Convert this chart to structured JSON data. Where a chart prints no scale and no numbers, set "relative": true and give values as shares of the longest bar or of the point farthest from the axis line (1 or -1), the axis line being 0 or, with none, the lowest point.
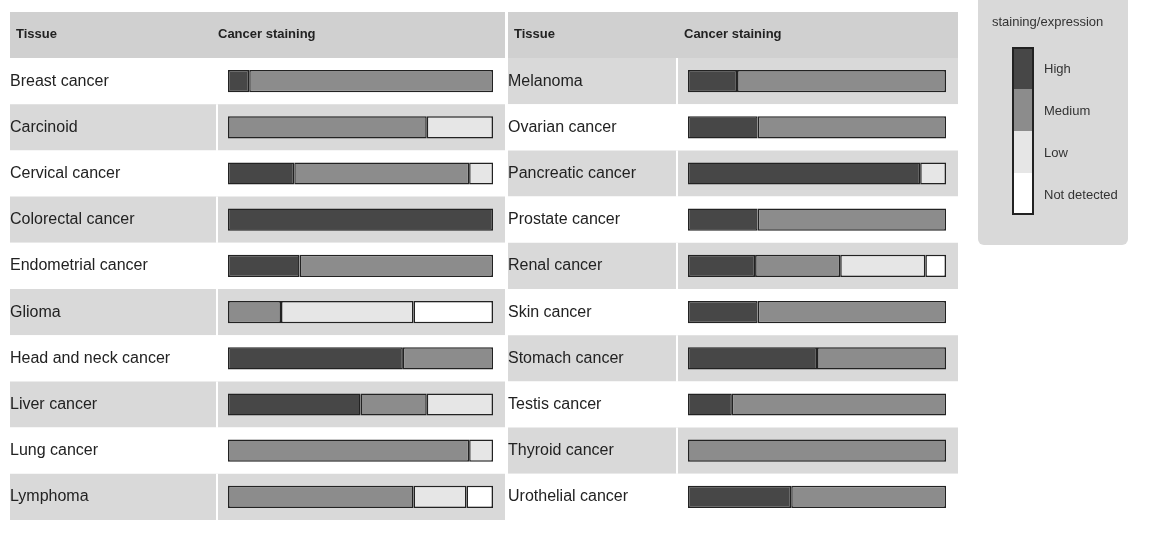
{
  "chart_data": [
    {
      "type": "bar",
      "orientation": "horizontal",
      "stacked": true,
      "relative": true,
      "ylabel": "Tissue",
      "xlabel": "Cancer staining",
      "categories": [
        "Breast cancer",
        "Carcinoid",
        "Cervical cancer",
        "Colorectal cancer",
        "Endometrial cancer",
        "Glioma",
        "Head and neck cancer",
        "Liver cancer",
        "Lung cancer",
        "Lymphoma"
      ],
      "series": [
        {
          "color": "#474747",
          "values": [
            0.08,
            null,
            0.25,
            1,
            0.27,
            null,
            0.66,
            0.5,
            null,
            null
          ]
        },
        {
          "color": "#8c8c8c",
          "values": [
            0.92,
            0.75,
            0.66,
            null,
            0.73,
            0.2,
            0.34,
            0.25,
            0.91,
            0.7
          ]
        },
        {
          "color": "#e6e6e6",
          "values": [
            null,
            0.25,
            0.09,
            null,
            null,
            0.5,
            null,
            0.25,
            0.09,
            0.2
          ]
        },
        {
          "color": "#ffffff",
          "values": [
            null,
            null,
            null,
            null,
            null,
            0.3,
            null,
            null,
            null,
            0.1
          ]
        }
      ]
    },
    {
      "type": "bar",
      "orientation": "horizontal",
      "stacked": true,
      "relative": true,
      "legend": "top right",
      "legend_title": "staining/expression",
      "ylabel": "Tissue",
      "xlabel": "Cancer staining",
      "categories": [
        "Melanoma",
        "Ovarian cancer",
        "Pancreatic cancer",
        "Prostate cancer",
        "Renal cancer",
        "Skin cancer",
        "Stomach cancer",
        "Testis cancer",
        "Thyroid cancer",
        "Urothelial cancer"
      ],
      "series": [
        {
          "name": "High",
          "color": "#474747",
          "values": [
            0.19,
            0.27,
            0.9,
            0.27,
            0.26,
            0.27,
            0.5,
            0.17,
            null,
            0.4
          ]
        },
        {
          "name": "Medium",
          "color": "#8c8c8c",
          "values": [
            0.81,
            0.73,
            null,
            0.73,
            0.33,
            0.73,
            0.5,
            0.83,
            1,
            0.6
          ]
        },
        {
          "name": "Low",
          "color": "#e6e6e6",
          "values": [
            null,
            null,
            0.1,
            null,
            0.33,
            null,
            null,
            null,
            null,
            null
          ]
        },
        {
          "name": "Not detected",
          "color": "#ffffff",
          "values": [
            null,
            null,
            null,
            null,
            0.08,
            null,
            null,
            null,
            null,
            null
          ]
        }
      ]
    }
  ]
}
